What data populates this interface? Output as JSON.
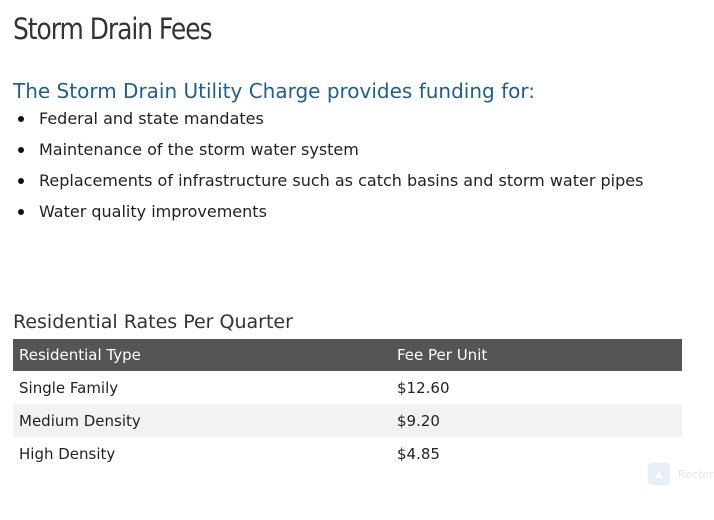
{
  "page": {
    "title": "Storm Drain Fees"
  },
  "funding": {
    "heading": "The Storm Drain Utility Charge provides funding for:",
    "items": [
      "Federal and state mandates",
      "Maintenance of the storm water system",
      "Replacements of infrastructure such as catch basins and storm water pipes",
      "Water quality improvements"
    ]
  },
  "rates": {
    "heading": "Residential Rates Per Quarter",
    "columns": [
      "Residential Type",
      "Fee Per Unit"
    ],
    "rows": [
      [
        "Single Family",
        "$12.60"
      ],
      [
        "Medium Density",
        "$9.20"
      ],
      [
        "High Density",
        "$4.85"
      ]
    ]
  },
  "widget": {
    "icon": "chevron-up-icon",
    "label": "Recter"
  },
  "colors": {
    "heading_accent": "#1f5f8b",
    "table_header_bg": "#555555",
    "table_stripe_bg": "#f2f2f2"
  }
}
